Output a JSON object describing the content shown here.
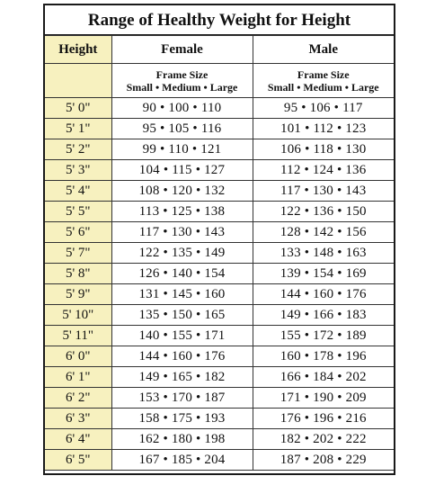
{
  "title": "Range of Healthy Weight for Height",
  "headers": {
    "height": "Height",
    "female": "Female",
    "male": "Male",
    "frame_size": "Frame Size",
    "frame_sizes": "Small • Medium • Large"
  },
  "rows": [
    {
      "height": "5' 0\"",
      "female": "90 • 100 • 110",
      "male": "95 • 106 • 117"
    },
    {
      "height": "5' 1\"",
      "female": "95 • 105 • 116",
      "male": "101 • 112 • 123"
    },
    {
      "height": "5' 2\"",
      "female": "99 • 110 • 121",
      "male": "106 • 118 • 130"
    },
    {
      "height": "5' 3\"",
      "female": "104 • 115 • 127",
      "male": "112 • 124 • 136"
    },
    {
      "height": "5' 4\"",
      "female": "108 • 120 • 132",
      "male": "117 • 130 • 143"
    },
    {
      "height": "5' 5\"",
      "female": "113 • 125 • 138",
      "male": "122 • 136 • 150"
    },
    {
      "height": "5' 6\"",
      "female": "117 • 130 • 143",
      "male": "128 • 142 • 156"
    },
    {
      "height": "5' 7\"",
      "female": "122 • 135 • 149",
      "male": "133 • 148 • 163"
    },
    {
      "height": "5' 8\"",
      "female": "126 • 140 • 154",
      "male": "139 • 154 • 169"
    },
    {
      "height": "5' 9\"",
      "female": "131 • 145 • 160",
      "male": "144 • 160 • 176"
    },
    {
      "height": "5' 10\"",
      "female": "135 • 150 • 165",
      "male": "149 • 166 • 183"
    },
    {
      "height": "5' 11\"",
      "female": "140 • 155 • 171",
      "male": "155 • 172 • 189"
    },
    {
      "height": "6' 0\"",
      "female": "144 • 160 • 176",
      "male": "160 • 178 • 196"
    },
    {
      "height": "6' 1\"",
      "female": "149 • 165 • 182",
      "male": "166 • 184 • 202"
    },
    {
      "height": "6' 2\"",
      "female": "153 • 170 • 187",
      "male": "171 • 190 • 209"
    },
    {
      "height": "6' 3\"",
      "female": "158 • 175 • 193",
      "male": "176 • 196 • 216"
    },
    {
      "height": "6' 4\"",
      "female": "162 • 180 • 198",
      "male": "182 • 202 • 222"
    },
    {
      "height": "6' 5\"",
      "female": "167 • 185 • 204",
      "male": "187 • 208 • 229"
    }
  ],
  "colors": {
    "height_column_fill": "#f7f1bf",
    "border": "#1a1a1a"
  }
}
